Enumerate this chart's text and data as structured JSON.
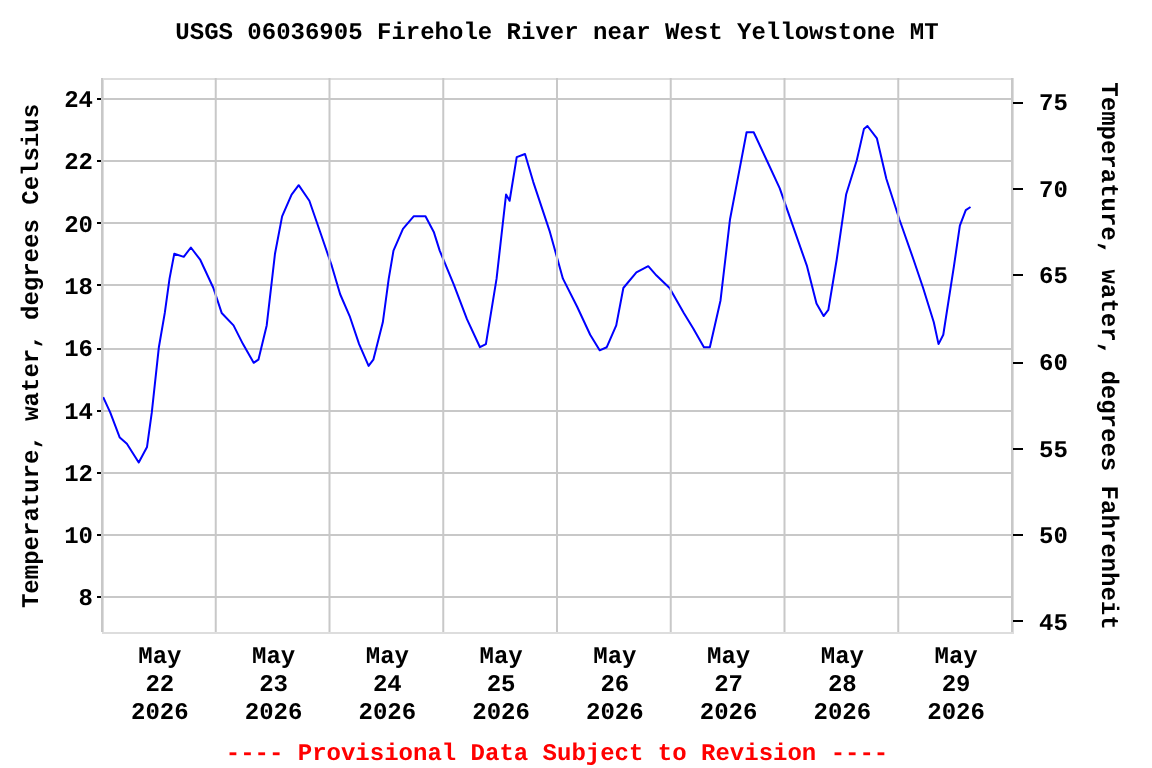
{
  "chart_data": {
    "type": "line",
    "title": "USGS 06036905 Firehole River near West Yellowstone MT",
    "ylabel": "Temperature, water, degrees Celsius",
    "y2label": "Temperature, water, degrees Fahrenheit",
    "annotations": [
      "---- Provisional Data Subject to Revision ----"
    ],
    "x": [
      "2026-05-22T00:15",
      "2026-05-22T01:45",
      "2026-05-22T03:45",
      "2026-05-22T05:15",
      "2026-05-22T07:45",
      "2026-05-22T09:30",
      "2026-05-22T10:30",
      "2026-05-22T12:00",
      "2026-05-22T13:15",
      "2026-05-22T14:15",
      "2026-05-22T15:15",
      "2026-05-22T17:15",
      "2026-05-22T18:45",
      "2026-05-22T20:45",
      "2026-05-22T23:30",
      "2026-05-23T01:15",
      "2026-05-23T03:45",
      "2026-05-23T05:45",
      "2026-05-23T08:00",
      "2026-05-23T09:00",
      "2026-05-23T10:45",
      "2026-05-23T12:30",
      "2026-05-23T14:00",
      "2026-05-23T16:00",
      "2026-05-23T17:30",
      "2026-05-23T19:45",
      "2026-05-23T22:15",
      "2026-05-24T00:30",
      "2026-05-24T02:15",
      "2026-05-24T04:15",
      "2026-05-24T06:15",
      "2026-05-24T08:15",
      "2026-05-24T09:15",
      "2026-05-24T11:15",
      "2026-05-24T12:30",
      "2026-05-24T13:30",
      "2026-05-24T15:30",
      "2026-05-24T17:45",
      "2026-05-24T20:15",
      "2026-05-24T22:00",
      "2026-05-24T23:15",
      "2026-05-25T02:15",
      "2026-05-25T05:00",
      "2026-05-25T07:45",
      "2026-05-25T09:00",
      "2026-05-25T11:15",
      "2026-05-25T13:15",
      "2026-05-25T14:00",
      "2026-05-25T15:30",
      "2026-05-25T17:15",
      "2026-05-25T19:00",
      "2026-05-25T22:30",
      "2026-05-26T01:15",
      "2026-05-26T04:15",
      "2026-05-26T07:00",
      "2026-05-26T09:00",
      "2026-05-26T10:30",
      "2026-05-26T12:30",
      "2026-05-26T14:00",
      "2026-05-26T16:45",
      "2026-05-26T19:15",
      "2026-05-26T21:00",
      "2026-05-26T23:45",
      "2026-05-27T02:45",
      "2026-05-27T04:45",
      "2026-05-27T07:00",
      "2026-05-27T08:15",
      "2026-05-27T10:30",
      "2026-05-27T12:30",
      "2026-05-27T14:00",
      "2026-05-27T16:00",
      "2026-05-27T17:30",
      "2026-05-27T20:15",
      "2026-05-27T23:00",
      "2026-05-28T01:45",
      "2026-05-28T04:45",
      "2026-05-28T06:45",
      "2026-05-28T08:15",
      "2026-05-28T09:15",
      "2026-05-28T11:00",
      "2026-05-28T13:00",
      "2026-05-28T15:15",
      "2026-05-28T16:45",
      "2026-05-28T17:30",
      "2026-05-28T19:30",
      "2026-05-28T21:30",
      "2026-05-29T00:15",
      "2026-05-29T03:15",
      "2026-05-29T05:15",
      "2026-05-29T07:30",
      "2026-05-29T08:30",
      "2026-05-29T09:30",
      "2026-05-29T11:45",
      "2026-05-29T13:00",
      "2026-05-29T14:15",
      "2026-05-29T15:15"
    ],
    "series": [
      {
        "color": "#0000ff",
        "values": [
          14.4,
          13.9,
          13.1,
          12.9,
          12.3,
          12.8,
          13.9,
          16.0,
          17.1,
          18.2,
          19.0,
          18.9,
          19.2,
          18.8,
          17.9,
          17.1,
          16.7,
          16.1,
          15.5,
          15.6,
          16.7,
          19.0,
          20.2,
          20.9,
          21.2,
          20.7,
          19.6,
          18.6,
          17.7,
          17.0,
          16.1,
          15.4,
          15.6,
          16.8,
          18.2,
          19.1,
          19.8,
          20.2,
          20.2,
          19.7,
          19.1,
          18.0,
          16.9,
          16.0,
          16.1,
          18.2,
          20.9,
          20.7,
          22.1,
          22.2,
          21.3,
          19.7,
          18.2,
          17.3,
          16.4,
          15.9,
          16.0,
          16.7,
          17.9,
          18.4,
          18.6,
          18.3,
          17.9,
          17.1,
          16.6,
          16.0,
          16.0,
          17.5,
          20.1,
          21.3,
          22.9,
          22.9,
          22.0,
          21.1,
          19.9,
          18.6,
          17.4,
          17.0,
          17.2,
          18.8,
          20.9,
          22.0,
          23.0,
          23.1,
          22.7,
          21.4,
          20.1,
          18.8,
          17.9,
          16.8,
          16.1,
          16.4,
          18.6,
          19.9,
          20.4,
          20.5
        ]
      }
    ],
    "xlim": [
      "2026-05-22T00:00",
      "2026-05-30T00:00"
    ],
    "xticks": [
      {
        "value": "2026-05-22T00:00",
        "label": null
      },
      {
        "value": "2026-05-22T12:00",
        "label": "May\n22\n2026"
      },
      {
        "value": "2026-05-23T00:00",
        "label": null
      },
      {
        "value": "2026-05-23T12:00",
        "label": "May\n23\n2026"
      },
      {
        "value": "2026-05-24T00:00",
        "label": null
      },
      {
        "value": "2026-05-24T12:00",
        "label": "May\n24\n2026"
      },
      {
        "value": "2026-05-25T00:00",
        "label": null
      },
      {
        "value": "2026-05-25T12:00",
        "label": "May\n25\n2026"
      },
      {
        "value": "2026-05-26T00:00",
        "label": null
      },
      {
        "value": "2026-05-26T12:00",
        "label": "May\n26\n2026"
      },
      {
        "value": "2026-05-27T00:00",
        "label": null
      },
      {
        "value": "2026-05-27T12:00",
        "label": "May\n27\n2026"
      },
      {
        "value": "2026-05-28T00:00",
        "label": null
      },
      {
        "value": "2026-05-28T12:00",
        "label": "May\n28\n2026"
      },
      {
        "value": "2026-05-29T00:00",
        "label": null
      },
      {
        "value": "2026-05-29T12:00",
        "label": "May\n29\n2026"
      },
      {
        "value": "2026-05-30T00:00",
        "label": null
      }
    ],
    "ylim": [
      6.86,
      24.64
    ],
    "yticks": [
      8,
      10,
      12,
      14,
      16,
      18,
      20,
      22,
      24
    ],
    "y2lim": [
      44.35,
      76.35
    ],
    "y2ticks": [
      45,
      50,
      55,
      60,
      65,
      70,
      75
    ],
    "grid": true,
    "marker": "none",
    "line_style": "solid"
  }
}
